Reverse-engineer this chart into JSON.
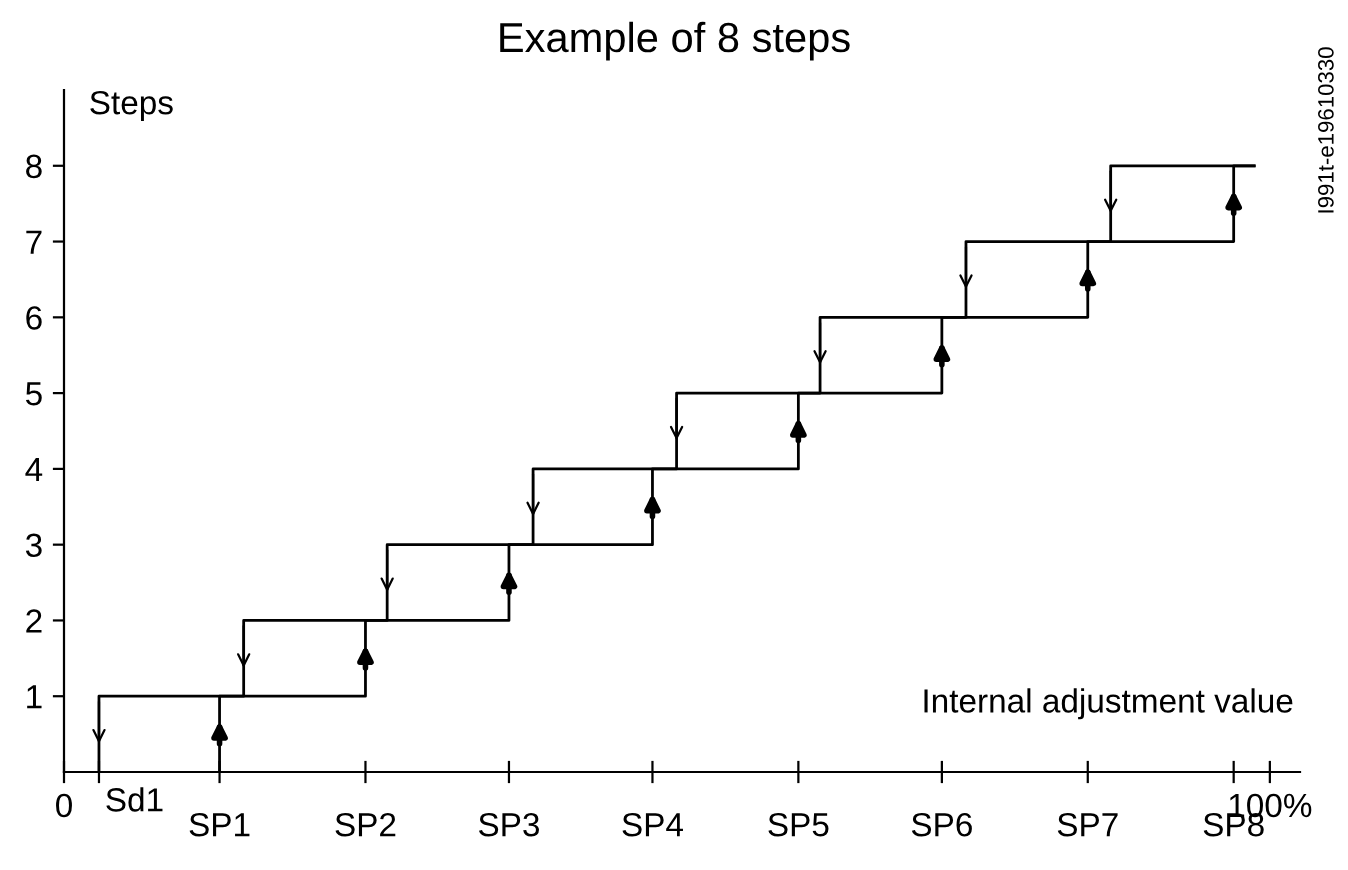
{
  "chart_data": {
    "type": "line",
    "title": "Example of 8 steps",
    "xlabel": "Internal adjustment value",
    "ylabel": "Steps",
    "series": [
      {
        "color": "#000000",
        "x": [
          12.9,
          12.9,
          25.0,
          25.0,
          36.9,
          36.9,
          48.8,
          48.8,
          60.9,
          60.9,
          72.8,
          72.8,
          84.9,
          84.9,
          97.0,
          97.0,
          98.7
        ],
        "values": [
          0,
          1,
          1,
          2,
          2,
          3,
          3,
          4,
          4,
          5,
          5,
          6,
          6,
          7,
          7,
          8,
          8
        ]
      },
      {
        "color": "#000000",
        "x": [
          98.7,
          86.8,
          86.8,
          74.8,
          74.8,
          62.7,
          62.7,
          50.8,
          50.8,
          38.9,
          38.9,
          26.8,
          26.8,
          14.9,
          14.9,
          2.9,
          2.9
        ],
        "values": [
          8,
          8,
          7,
          7,
          6,
          6,
          5,
          5,
          4,
          4,
          3,
          3,
          2,
          2,
          1,
          1,
          0
        ]
      }
    ],
    "xlim": [
      0,
      102.5
    ],
    "ylim": [
      0,
      9
    ],
    "xticks": [
      {
        "value": 0,
        "label": "0"
      },
      {
        "value": 2.9,
        "label": null
      },
      {
        "value": 12.9,
        "label": null
      },
      {
        "value": 25.0,
        "label": null
      },
      {
        "value": 36.9,
        "label": null
      },
      {
        "value": 48.8,
        "label": null
      },
      {
        "value": 60.9,
        "label": null
      },
      {
        "value": 72.8,
        "label": null
      },
      {
        "value": 84.9,
        "label": null
      },
      {
        "value": 97.0,
        "label": null
      },
      {
        "value": 100,
        "label": "100%"
      }
    ],
    "yticks": [
      1,
      2,
      3,
      4,
      5,
      6,
      7,
      8
    ],
    "annotations": [
      "Sd1",
      "I991t-e19610330",
      "SP1",
      "SP2",
      "SP3",
      "SP4",
      "SP5",
      "SP6",
      "SP7",
      "SP8"
    ],
    "grid": false,
    "legend": false,
    "marker": "none",
    "line_style": "solid"
  }
}
